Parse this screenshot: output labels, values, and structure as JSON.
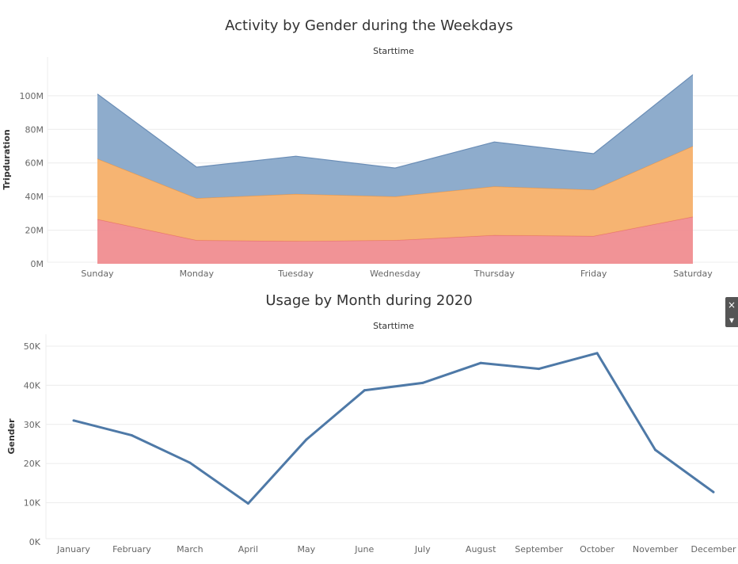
{
  "chart_data": [
    {
      "type": "area",
      "title": "Activity by Gender during the Weekdays",
      "subtitle": "Starttime",
      "ylabel": "Tripduration",
      "xlabel": "",
      "categories": [
        "Sunday",
        "Monday",
        "Tuesday",
        "Wednesday",
        "Thursday",
        "Friday",
        "Saturday"
      ],
      "ylim": [
        0,
        115000000
      ],
      "yticks": [
        0,
        20000000,
        40000000,
        60000000,
        80000000,
        100000000
      ],
      "ytick_labels": [
        "0M",
        "20M",
        "40M",
        "60M",
        "80M",
        "100M"
      ],
      "stacked": true,
      "series": [
        {
          "color": "#f08d90",
          "values": [
            26500000,
            14000000,
            13500000,
            14000000,
            17000000,
            16500000,
            28000000
          ]
        },
        {
          "color": "#f6b06a",
          "values": [
            36000000,
            25000000,
            28000000,
            26000000,
            29000000,
            27500000,
            42000000
          ]
        },
        {
          "color": "#88a8c9",
          "values": [
            38500000,
            18500000,
            22500000,
            17000000,
            26500000,
            21500000,
            42500000
          ]
        }
      ],
      "grid": true
    },
    {
      "type": "line",
      "title": "Usage by Month during 2020",
      "subtitle": "Starttime",
      "ylabel": "Gender",
      "xlabel": "",
      "categories": [
        "January",
        "February",
        "March",
        "April",
        "May",
        "June",
        "July",
        "August",
        "September",
        "October",
        "November",
        "December"
      ],
      "ylim": [
        0,
        51000
      ],
      "yticks": [
        0,
        10000,
        20000,
        30000,
        40000,
        50000
      ],
      "ytick_labels": [
        "0K",
        "10K",
        "20K",
        "30K",
        "40K",
        "50K"
      ],
      "series": [
        {
          "color": "#4e79a7",
          "values": [
            31000,
            27200,
            20200,
            9800,
            26100,
            38700,
            40600,
            45700,
            44200,
            48200,
            23500,
            12700
          ]
        }
      ],
      "grid": true
    }
  ],
  "ui": {
    "close_icon": "×",
    "dropdown_icon": "▾"
  }
}
